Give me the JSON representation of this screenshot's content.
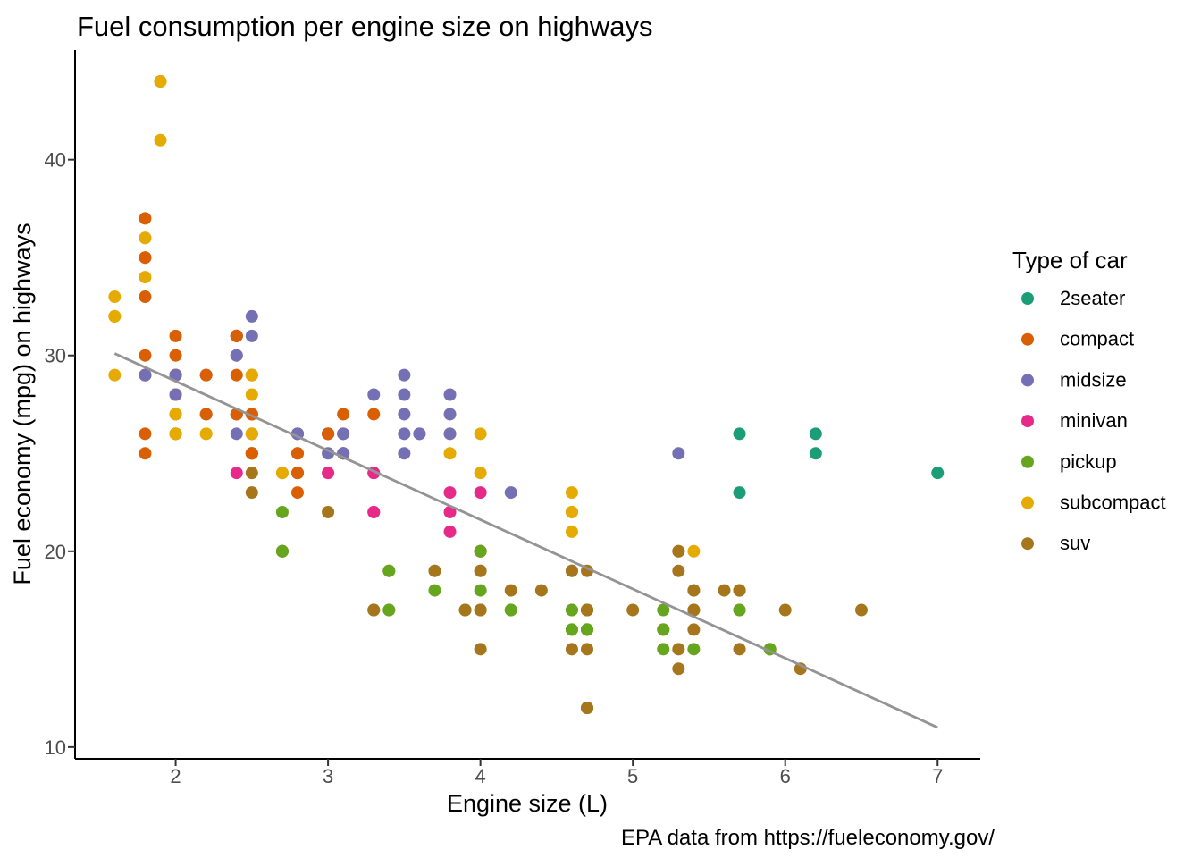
{
  "chart_data": {
    "type": "scatter",
    "title": "Fuel consumption per engine size on highways",
    "xlabel": "Engine size (L)",
    "ylabel": "Fuel economy (mpg) on highways",
    "caption": "EPA data from https://fueleconomy.gov/",
    "xlim": [
      1.34,
      7.28
    ],
    "ylim": [
      9.4,
      45.6
    ],
    "x_ticks": [
      2,
      3,
      4,
      5,
      6,
      7
    ],
    "y_ticks": [
      10,
      20,
      30,
      40
    ],
    "grid": false,
    "legend": {
      "title": "Type of car",
      "position": "right"
    },
    "classes": [
      {
        "name": "2seater",
        "color": "#1B9E77"
      },
      {
        "name": "compact",
        "color": "#D95F02"
      },
      {
        "name": "midsize",
        "color": "#7570B3"
      },
      {
        "name": "minivan",
        "color": "#E7298A"
      },
      {
        "name": "pickup",
        "color": "#66A61E"
      },
      {
        "name": "subcompact",
        "color": "#E6AB02"
      },
      {
        "name": "suv",
        "color": "#A6761D"
      }
    ],
    "points": [
      [
        1.8,
        29,
        1
      ],
      [
        1.8,
        29,
        1
      ],
      [
        2.0,
        31,
        1
      ],
      [
        2.0,
        30,
        1
      ],
      [
        2.8,
        26,
        1
      ],
      [
        2.8,
        26,
        1
      ],
      [
        3.1,
        27,
        1
      ],
      [
        1.8,
        26,
        1
      ],
      [
        1.8,
        25,
        1
      ],
      [
        2.0,
        28,
        1
      ],
      [
        2.0,
        27,
        1
      ],
      [
        2.8,
        25,
        1
      ],
      [
        2.8,
        25,
        1
      ],
      [
        3.1,
        25,
        1
      ],
      [
        3.1,
        25,
        1
      ],
      [
        2.8,
        24,
        2
      ],
      [
        3.1,
        25,
        2
      ],
      [
        4.2,
        23,
        2
      ],
      [
        5.3,
        20,
        6
      ],
      [
        5.3,
        15,
        6
      ],
      [
        5.3,
        20,
        6
      ],
      [
        5.7,
        17,
        6
      ],
      [
        6.0,
        17,
        6
      ],
      [
        5.7,
        26,
        0
      ],
      [
        5.7,
        23,
        0
      ],
      [
        6.2,
        26,
        0
      ],
      [
        6.2,
        25,
        0
      ],
      [
        7.0,
        24,
        0
      ],
      [
        5.3,
        19,
        6
      ],
      [
        5.3,
        14,
        6
      ],
      [
        5.7,
        15,
        6
      ],
      [
        6.5,
        17,
        6
      ],
      [
        2.4,
        27,
        2
      ],
      [
        2.4,
        30,
        2
      ],
      [
        3.1,
        26,
        2
      ],
      [
        3.5,
        29,
        2
      ],
      [
        3.6,
        26,
        2
      ],
      [
        2.4,
        24,
        3
      ],
      [
        3.0,
        24,
        3
      ],
      [
        3.3,
        22,
        3
      ],
      [
        3.3,
        22,
        3
      ],
      [
        3.3,
        24,
        3
      ],
      [
        3.3,
        24,
        3
      ],
      [
        3.3,
        17,
        3
      ],
      [
        3.8,
        22,
        3
      ],
      [
        3.8,
        21,
        3
      ],
      [
        3.8,
        23,
        3
      ],
      [
        4.0,
        23,
        3
      ],
      [
        3.7,
        19,
        4
      ],
      [
        3.7,
        18,
        4
      ],
      [
        3.9,
        17,
        4
      ],
      [
        3.9,
        17,
        4
      ],
      [
        4.7,
        16,
        4
      ],
      [
        4.7,
        16,
        4
      ],
      [
        4.7,
        12,
        4
      ],
      [
        3.9,
        17,
        6
      ],
      [
        4.7,
        17,
        6
      ],
      [
        4.7,
        12,
        6
      ],
      [
        4.7,
        17,
        6
      ],
      [
        5.2,
        16,
        6
      ],
      [
        5.7,
        18,
        6
      ],
      [
        5.9,
        15,
        6
      ],
      [
        4.7,
        16,
        4
      ],
      [
        4.7,
        12,
        4
      ],
      [
        4.7,
        17,
        4
      ],
      [
        4.7,
        17,
        4
      ],
      [
        4.7,
        16,
        4
      ],
      [
        5.2,
        15,
        4
      ],
      [
        5.2,
        16,
        4
      ],
      [
        5.2,
        17,
        4
      ],
      [
        5.7,
        17,
        4
      ],
      [
        5.9,
        15,
        4
      ],
      [
        4.6,
        17,
        6
      ],
      [
        5.4,
        17,
        6
      ],
      [
        5.4,
        18,
        6
      ],
      [
        4.0,
        17,
        6
      ],
      [
        4.0,
        17,
        6
      ],
      [
        4.0,
        19,
        6
      ],
      [
        4.6,
        19,
        6
      ],
      [
        4.2,
        17,
        4
      ],
      [
        4.2,
        17,
        4
      ],
      [
        4.6,
        16,
        4
      ],
      [
        4.6,
        16,
        4
      ],
      [
        4.6,
        17,
        4
      ],
      [
        5.4,
        15,
        4
      ],
      [
        5.4,
        17,
        4
      ],
      [
        3.8,
        26,
        5
      ],
      [
        3.8,
        25,
        5
      ],
      [
        4.0,
        26,
        5
      ],
      [
        4.0,
        24,
        5
      ],
      [
        4.6,
        21,
        5
      ],
      [
        4.6,
        22,
        5
      ],
      [
        4.6,
        23,
        5
      ],
      [
        4.6,
        22,
        5
      ],
      [
        5.4,
        20,
        5
      ],
      [
        1.6,
        33,
        5
      ],
      [
        1.6,
        32,
        5
      ],
      [
        1.6,
        32,
        5
      ],
      [
        1.6,
        29,
        5
      ],
      [
        1.6,
        32,
        5
      ],
      [
        1.8,
        34,
        5
      ],
      [
        1.8,
        36,
        5
      ],
      [
        1.8,
        36,
        5
      ],
      [
        2.0,
        29,
        5
      ],
      [
        2.4,
        26,
        2
      ],
      [
        2.4,
        27,
        2
      ],
      [
        2.4,
        30,
        2
      ],
      [
        2.4,
        31,
        2
      ],
      [
        2.5,
        26,
        2
      ],
      [
        2.5,
        26,
        2
      ],
      [
        3.3,
        28,
        2
      ],
      [
        2.0,
        26,
        5
      ],
      [
        2.0,
        29,
        5
      ],
      [
        2.0,
        28,
        5
      ],
      [
        2.0,
        27,
        5
      ],
      [
        2.7,
        24,
        5
      ],
      [
        2.7,
        24,
        5
      ],
      [
        3.0,
        22,
        6
      ],
      [
        3.7,
        19,
        6
      ],
      [
        4.0,
        20,
        6
      ],
      [
        4.7,
        17,
        6
      ],
      [
        4.7,
        12,
        6
      ],
      [
        4.7,
        19,
        6
      ],
      [
        5.7,
        18,
        6
      ],
      [
        6.1,
        14,
        6
      ],
      [
        4.0,
        15,
        6
      ],
      [
        4.2,
        18,
        6
      ],
      [
        4.4,
        18,
        6
      ],
      [
        4.6,
        15,
        6
      ],
      [
        5.4,
        17,
        6
      ],
      [
        5.4,
        16,
        6
      ],
      [
        5.4,
        18,
        6
      ],
      [
        4.0,
        17,
        6
      ],
      [
        4.0,
        19,
        6
      ],
      [
        4.6,
        19,
        6
      ],
      [
        5.0,
        17,
        6
      ],
      [
        2.4,
        29,
        1
      ],
      [
        2.4,
        27,
        1
      ],
      [
        2.5,
        31,
        2
      ],
      [
        2.5,
        32,
        2
      ],
      [
        3.5,
        27,
        2
      ],
      [
        3.5,
        26,
        2
      ],
      [
        3.0,
        26,
        2
      ],
      [
        3.0,
        25,
        2
      ],
      [
        3.5,
        25,
        2
      ],
      [
        3.3,
        17,
        6
      ],
      [
        3.3,
        17,
        6
      ],
      [
        4.0,
        20,
        6
      ],
      [
        5.6,
        18,
        6
      ],
      [
        3.1,
        26,
        2
      ],
      [
        3.8,
        26,
        2
      ],
      [
        3.8,
        27,
        2
      ],
      [
        3.8,
        28,
        2
      ],
      [
        5.3,
        25,
        2
      ],
      [
        2.5,
        25,
        6
      ],
      [
        2.5,
        24,
        6
      ],
      [
        2.5,
        27,
        6
      ],
      [
        2.5,
        25,
        6
      ],
      [
        2.5,
        23,
        6
      ],
      [
        2.2,
        26,
        5
      ],
      [
        2.2,
        26,
        5
      ],
      [
        2.5,
        26,
        5
      ],
      [
        2.5,
        26,
        5
      ],
      [
        2.5,
        25,
        1
      ],
      [
        2.5,
        27,
        1
      ],
      [
        2.5,
        25,
        1
      ],
      [
        2.5,
        27,
        1
      ],
      [
        2.7,
        20,
        6
      ],
      [
        2.7,
        20,
        6
      ],
      [
        3.4,
        19,
        6
      ],
      [
        3.4,
        17,
        6
      ],
      [
        4.0,
        20,
        6
      ],
      [
        4.7,
        17,
        6
      ],
      [
        2.2,
        29,
        2
      ],
      [
        2.2,
        27,
        2
      ],
      [
        2.4,
        31,
        2
      ],
      [
        2.4,
        31,
        2
      ],
      [
        3.0,
        26,
        2
      ],
      [
        3.0,
        26,
        2
      ],
      [
        3.5,
        28,
        2
      ],
      [
        2.2,
        27,
        1
      ],
      [
        2.2,
        29,
        1
      ],
      [
        2.4,
        31,
        1
      ],
      [
        2.4,
        31,
        1
      ],
      [
        3.0,
        26,
        1
      ],
      [
        3.0,
        26,
        1
      ],
      [
        3.3,
        27,
        1
      ],
      [
        1.8,
        30,
        1
      ],
      [
        1.8,
        33,
        1
      ],
      [
        1.8,
        35,
        1
      ],
      [
        1.8,
        37,
        1
      ],
      [
        1.8,
        35,
        1
      ],
      [
        4.7,
        15,
        6
      ],
      [
        5.7,
        18,
        6
      ],
      [
        2.7,
        20,
        4
      ],
      [
        2.7,
        20,
        4
      ],
      [
        2.7,
        22,
        4
      ],
      [
        3.4,
        17,
        4
      ],
      [
        3.4,
        19,
        4
      ],
      [
        4.0,
        20,
        4
      ],
      [
        4.0,
        18,
        4
      ],
      [
        2.0,
        29,
        1
      ],
      [
        2.0,
        26,
        1
      ],
      [
        2.0,
        29,
        1
      ],
      [
        2.0,
        29,
        1
      ],
      [
        2.8,
        24,
        1
      ],
      [
        1.9,
        44,
        1
      ],
      [
        2.0,
        29,
        1
      ],
      [
        2.0,
        26,
        1
      ],
      [
        2.0,
        29,
        1
      ],
      [
        2.0,
        29,
        1
      ],
      [
        2.5,
        29,
        1
      ],
      [
        2.5,
        29,
        1
      ],
      [
        2.8,
        23,
        1
      ],
      [
        2.8,
        24,
        1
      ],
      [
        1.9,
        44,
        5
      ],
      [
        1.9,
        41,
        5
      ],
      [
        2.0,
        29,
        5
      ],
      [
        2.0,
        26,
        5
      ],
      [
        2.5,
        28,
        5
      ],
      [
        2.5,
        29,
        5
      ],
      [
        1.8,
        29,
        2
      ],
      [
        1.8,
        29,
        2
      ],
      [
        2.0,
        28,
        2
      ],
      [
        2.0,
        29,
        2
      ],
      [
        2.8,
        26,
        2
      ],
      [
        2.8,
        26,
        2
      ],
      [
        3.6,
        26,
        2
      ]
    ],
    "trend_line": {
      "type": "linear",
      "color": "#949494",
      "x1": 1.6,
      "y1": 30.1,
      "x2": 7.0,
      "y2": 11.0
    }
  },
  "styles": {
    "background": "#FFFFFF",
    "title_color": "#000000",
    "axis_title_color": "#000000",
    "tick_label_color": "#4D4D4D",
    "axis_line_color": "#000000",
    "tick_mark_color": "#333333",
    "legend_text_color": "#000000"
  }
}
